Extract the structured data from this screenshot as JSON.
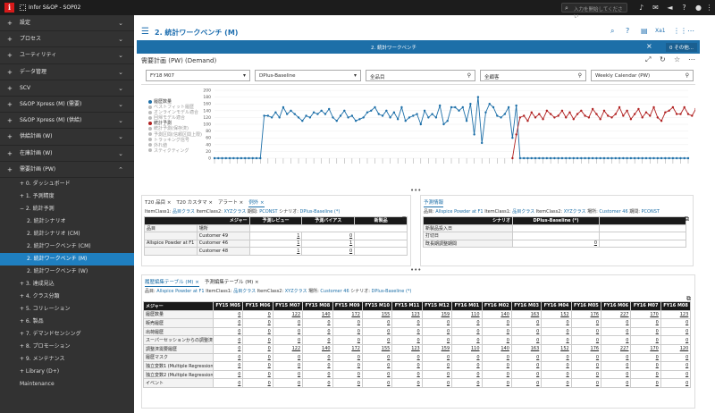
{
  "app": {
    "title": "Infor S&OP - SOP02",
    "search_placeholder": "入力を開始してください"
  },
  "topbar_icons": [
    "bell-icon",
    "mail-icon",
    "megaphone-icon",
    "help-icon",
    "user-icon",
    "more-icon"
  ],
  "sidebar": {
    "items": [
      {
        "label": "設定"
      },
      {
        "label": "プロセス"
      },
      {
        "label": "ユーティリティ"
      },
      {
        "label": "データ管理"
      },
      {
        "label": "SCV"
      },
      {
        "label": "S&OP Xpress (M) (需要)"
      },
      {
        "label": "S&OP Xpress (M) (供給)"
      },
      {
        "label": "供給計画 (W)"
      },
      {
        "label": "在庫計画 (W)"
      },
      {
        "label": "需要計画 (PW)"
      }
    ],
    "subitems": [
      {
        "label": "+  0. ダッシュボード",
        "level": 1
      },
      {
        "label": "+  1. 予測精度",
        "level": 1
      },
      {
        "label": "−  2. 統計予測",
        "level": 1
      },
      {
        "label": "2. 統計シナリオ",
        "level": 2
      },
      {
        "label": "2. 統計シナリオ (CM)",
        "level": 2
      },
      {
        "label": "2. 統計ワークベンチ (CM)",
        "level": 2
      },
      {
        "label": "2. 統計ワークベンチ (M)",
        "level": 2,
        "active": true
      },
      {
        "label": "2. 統計ワークベンチ (W)",
        "level": 2
      },
      {
        "label": "+  3. 達成見込",
        "level": 1
      },
      {
        "label": "+  4. クラス分類",
        "level": 1
      },
      {
        "label": "+  5. コリレーション",
        "level": 1
      },
      {
        "label": "+  6. 製品",
        "level": 1
      },
      {
        "label": "+  7. デマンドセンシング",
        "level": 1
      },
      {
        "label": "+  8. プロモーション",
        "level": 1
      },
      {
        "label": "+  9. メンテナンス",
        "level": 1
      },
      {
        "label": "+  Library (D+)",
        "level": 1
      },
      {
        "label": "Maintenance",
        "level": 1
      }
    ]
  },
  "header": {
    "title": "2. 統計ワークベンチ (M)",
    "excel_label": "Xa1"
  },
  "tabbar": {
    "tab_title": "2. 統計ワークベンチ",
    "other_label": "0 その他..."
  },
  "panel": {
    "title": "需要計画 (PW) (Demand)"
  },
  "filters": {
    "period": "FY18 M07",
    "scenario": "DPlus-Baseline",
    "product": "全品目",
    "customer": "全顧客",
    "calendar": "Weekly Calendar (PW)"
  },
  "legend": [
    {
      "label": "履歴数量",
      "on": true,
      "color": "#1d6fa8"
    },
    {
      "label": "ベストフィット履歴",
      "on": false
    },
    {
      "label": "オンラインモデル適合",
      "on": false
    },
    {
      "label": "回帰モデル適合",
      "on": false
    },
    {
      "label": "統計予測",
      "on": true,
      "color": "#b02020"
    },
    {
      "label": "統計予測(保存済)",
      "on": false
    },
    {
      "label": "予測区間(信頼区間上限)",
      "on": false
    },
    {
      "label": "トラッキング信号",
      "on": false
    },
    {
      "label": "外れ値",
      "on": false
    },
    {
      "label": "スティクティング",
      "on": false
    }
  ],
  "chart_data": {
    "type": "line",
    "ylim": [
      0,
      200
    ],
    "yticks": [
      "200",
      "180",
      "160",
      "140",
      "120",
      "100",
      "80",
      "60",
      "40",
      "20",
      "0"
    ],
    "series": [
      {
        "name": "履歴数量",
        "color": "#1d6fa8",
        "values": [
          0,
          0,
          0,
          0,
          0,
          0,
          0,
          0,
          0,
          0,
          0,
          0,
          0,
          125,
          125,
          120,
          135,
          120,
          150,
          130,
          140,
          130,
          120,
          110,
          125,
          120,
          135,
          130,
          140,
          130,
          145,
          120,
          110,
          125,
          140,
          120,
          125,
          110,
          115,
          120,
          135,
          140,
          150,
          130,
          125,
          140,
          120,
          135,
          115,
          150,
          110,
          120,
          125,
          130,
          100,
          140,
          120,
          130,
          120,
          155,
          100,
          110,
          150,
          150,
          140,
          150,
          110,
          160,
          70,
          180,
          45,
          135,
          160,
          150,
          125,
          120,
          130,
          150,
          60,
          155,
          0,
          0,
          0,
          0,
          0,
          0,
          0,
          0,
          0,
          0,
          0,
          0,
          0,
          0,
          0,
          0,
          0,
          0,
          0,
          0,
          0,
          0,
          0,
          0,
          0,
          0,
          0,
          0,
          0,
          0,
          0,
          0,
          0,
          0,
          0,
          0,
          0,
          0,
          0,
          0,
          0,
          0,
          0,
          0,
          0
        ]
      },
      {
        "name": "統計予測",
        "color": "#b02020",
        "values": [
          null,
          null,
          null,
          null,
          null,
          null,
          null,
          null,
          null,
          null,
          null,
          null,
          null,
          null,
          null,
          null,
          null,
          null,
          null,
          null,
          null,
          null,
          null,
          null,
          null,
          null,
          null,
          null,
          null,
          null,
          null,
          null,
          null,
          null,
          null,
          null,
          null,
          null,
          null,
          null,
          null,
          null,
          null,
          null,
          null,
          null,
          null,
          null,
          null,
          null,
          null,
          null,
          null,
          null,
          null,
          null,
          null,
          null,
          null,
          null,
          null,
          null,
          null,
          null,
          null,
          null,
          null,
          null,
          null,
          null,
          null,
          null,
          null,
          null,
          null,
          null,
          null,
          null,
          0,
          70,
          120,
          125,
          110,
          135,
          120,
          130,
          115,
          140,
          130,
          120,
          125,
          140,
          120,
          135,
          115,
          130,
          140,
          125,
          120,
          145,
          130,
          115,
          140,
          125,
          120,
          130,
          150,
          125,
          140,
          115,
          130,
          145,
          120,
          135,
          125,
          150,
          120,
          110,
          135,
          140,
          150,
          130,
          130,
          150,
          130,
          125,
          145,
          130,
          35
        ]
      }
    ]
  },
  "left_pane": {
    "tabs": [
      "T20 品目 ×",
      "T20 カスタマ ×",
      "アラート ×",
      "例外 ×"
    ],
    "crumb": [
      "ItemClass1:",
      "品目クラス",
      "ItemClass2:",
      "XYZクラス",
      "期間:",
      "PCONST",
      "シナリオ:",
      "DPlus-Baseline (*)"
    ],
    "headers": [
      "メジャー",
      "予測レビュー",
      "予測バイアス",
      "新製品"
    ],
    "col_labels": [
      "品目",
      "場所"
    ],
    "rows": [
      {
        "item": "",
        "loc": "Customer 49",
        "v": [
          "1",
          "0",
          ""
        ]
      },
      {
        "item": "Allspice Powder at F1",
        "loc": "Customer 46",
        "v": [
          "1",
          "1",
          ""
        ]
      },
      {
        "item": "",
        "loc": "Customer 48",
        "v": [
          "1",
          "0",
          ""
        ]
      }
    ]
  },
  "right_pane": {
    "tabs": [
      "予測情報"
    ],
    "crumb": [
      "品目:",
      "Allspice Powder at F1",
      "ItemClass1:",
      "品目クラス",
      "ItemClass2:",
      "XYZクラス",
      "場所:",
      "Customer 46",
      "期間:",
      "PCONST"
    ],
    "headers": [
      "シナリオ",
      "DPlus-Baseline (*)"
    ],
    "rows": [
      {
        "label": "新製品投入日",
        "value": ""
      },
      {
        "label": "打切日",
        "value": ""
      },
      {
        "label": "既長期調整期間",
        "value": "0"
      }
    ]
  },
  "bottom_pane": {
    "tabs": [
      "履歴編集テーブル (M) ×",
      "予測編集テーブル (M) ×"
    ],
    "crumb": [
      "品目:",
      "Allspice Powder at F1",
      "ItemClass1:",
      "品目クラス",
      "ItemClass2:",
      "XYZクラス",
      "場所:",
      "Customer 46",
      "シナリオ:",
      "DPlus-Baseline (*)"
    ],
    "columns": [
      "メジャー",
      "FY15 M05",
      "FY15 M06",
      "FY15 M07",
      "FY15 M08",
      "FY15 M09",
      "FY15 M10",
      "FY15 M11",
      "FY15 M12",
      "FY16 M01",
      "FY16 M02",
      "FY16 M03",
      "FY16 M04",
      "FY16 M05",
      "FY16 M06",
      "FY16 M07",
      "FY16 M08"
    ],
    "rows": [
      {
        "label": "履歴数量",
        "v": [
          "0",
          "0",
          "122",
          "140",
          "172",
          "155",
          "123",
          "159",
          "110",
          "140",
          "163",
          "152",
          "176",
          "227",
          "170",
          "123"
        ]
      },
      {
        "label": "販売履歴",
        "v": [
          "0",
          "0",
          "0",
          "0",
          "0",
          "0",
          "0",
          "0",
          "0",
          "0",
          "0",
          "0",
          "0",
          "0",
          "0",
          "0"
        ]
      },
      {
        "label": "出荷履歴",
        "v": [
          "0",
          "0",
          "0",
          "0",
          "0",
          "0",
          "0",
          "0",
          "0",
          "0",
          "0",
          "0",
          "0",
          "0",
          "0",
          "0"
        ]
      },
      {
        "label": "スーパーセッションからの調整済数",
        "v": [
          "0",
          "0",
          "0",
          "0",
          "0",
          "0",
          "0",
          "0",
          "0",
          "0",
          "0",
          "0",
          "0",
          "0",
          "0",
          "0"
        ]
      },
      {
        "label": "調整済需要履歴",
        "v": [
          "0",
          "0",
          "122",
          "140",
          "172",
          "155",
          "123",
          "159",
          "110",
          "140",
          "163",
          "152",
          "176",
          "227",
          "170",
          "120"
        ]
      },
      {
        "label": "履歴マスク",
        "v": [
          "0",
          "0",
          "0",
          "0",
          "0",
          "0",
          "0",
          "0",
          "0",
          "0",
          "0",
          "0",
          "0",
          "0",
          "0",
          "0"
        ]
      },
      {
        "label": "独立変数1 (Multiple Regression)",
        "v": [
          "0",
          "0",
          "0",
          "0",
          "0",
          "0",
          "0",
          "0",
          "0",
          "0",
          "0",
          "0",
          "0",
          "0",
          "0",
          "0"
        ]
      },
      {
        "label": "独立変数2 (Multiple Regression)",
        "v": [
          "0",
          "0",
          "0",
          "0",
          "0",
          "0",
          "0",
          "0",
          "0",
          "0",
          "0",
          "0",
          "0",
          "0",
          "0",
          "0"
        ]
      },
      {
        "label": "イベント",
        "v": [
          "0",
          "0",
          "0",
          "0",
          "0",
          "0",
          "0",
          "0",
          "0",
          "0",
          "0",
          "0",
          "0",
          "0",
          "0",
          "0"
        ]
      }
    ]
  }
}
